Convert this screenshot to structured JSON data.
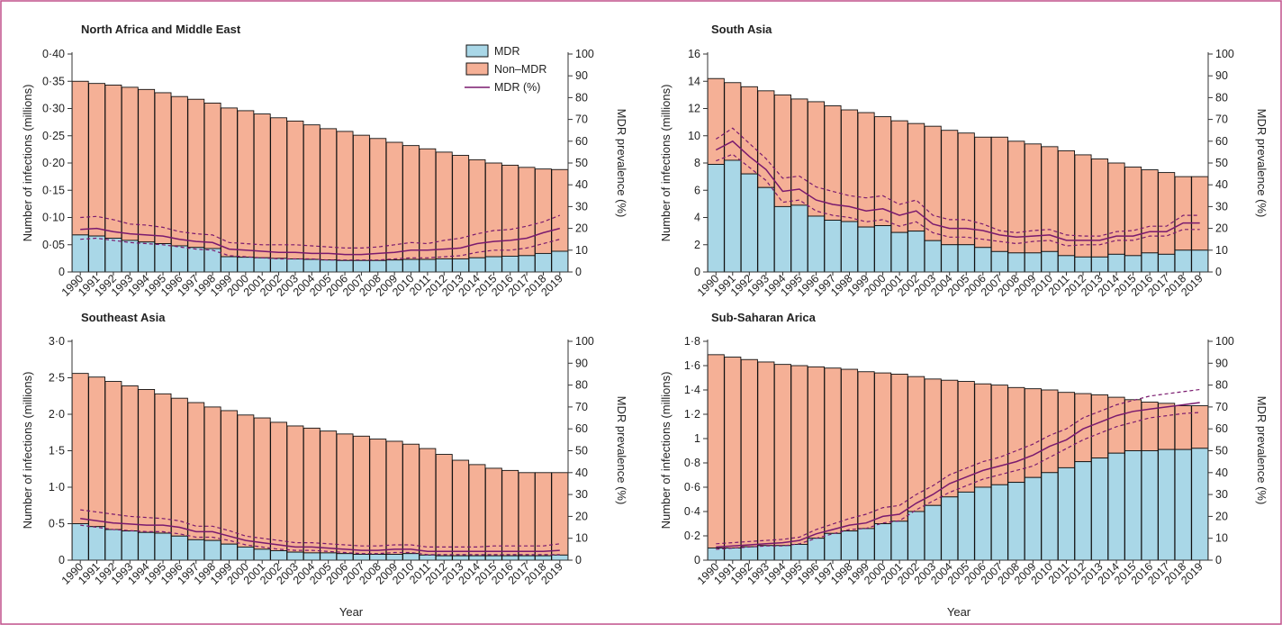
{
  "colors": {
    "border": "#c0508c",
    "mdr_fill": "#a9d7e7",
    "nonmdr_fill": "#f5b096",
    "bar_stroke": "#111111",
    "line": "#7a1a6e"
  },
  "legend": {
    "mdr": "MDR",
    "nonmdr": "Non–MDR",
    "pct": "MDR (%)"
  },
  "xlabel": "Year",
  "ylabel_left": "Number of infections (millions)",
  "ylabel_right": "MDR prevalence (%)",
  "chart_data": [
    {
      "type": "bar",
      "title": "North Africa and Middle East",
      "x": [
        "1990",
        "1991",
        "1992",
        "1993",
        "1994",
        "1995",
        "1996",
        "1997",
        "1998",
        "1999",
        "2000",
        "2001",
        "2002",
        "2003",
        "2004",
        "2005",
        "2006",
        "2007",
        "2008",
        "2009",
        "2010",
        "2011",
        "2012",
        "2013",
        "2014",
        "2015",
        "2016",
        "2017",
        "2018",
        "2019"
      ],
      "ylim": [
        0,
        0.4
      ],
      "yticks": [
        0,
        0.05,
        0.1,
        0.15,
        0.2,
        0.25,
        0.3,
        0.35,
        0.4
      ],
      "ytick_labels": [
        "0",
        "0·05",
        "0·10",
        "0·15",
        "0·20",
        "0·25",
        "0·30",
        "0·35",
        "0·40"
      ],
      "y2lim": [
        0,
        100
      ],
      "y2ticks": [
        0,
        10,
        20,
        30,
        40,
        50,
        60,
        70,
        80,
        90,
        100
      ],
      "legend_position": "top-right",
      "series": [
        {
          "name": "MDR",
          "values": [
            0.068,
            0.066,
            0.062,
            0.058,
            0.055,
            0.052,
            0.048,
            0.045,
            0.043,
            0.028,
            0.027,
            0.026,
            0.025,
            0.024,
            0.023,
            0.022,
            0.021,
            0.021,
            0.021,
            0.022,
            0.023,
            0.023,
            0.024,
            0.024,
            0.026,
            0.028,
            0.029,
            0.03,
            0.034,
            0.038
          ]
        },
        {
          "name": "Non-MDR",
          "values": [
            0.282,
            0.28,
            0.281,
            0.281,
            0.28,
            0.277,
            0.274,
            0.272,
            0.267,
            0.273,
            0.269,
            0.264,
            0.258,
            0.253,
            0.247,
            0.241,
            0.237,
            0.23,
            0.224,
            0.216,
            0.209,
            0.203,
            0.196,
            0.19,
            0.18,
            0.172,
            0.167,
            0.162,
            0.155,
            0.15
          ]
        },
        {
          "name": "MDR (%)",
          "values": [
            19.5,
            20,
            18.5,
            17.5,
            17,
            16.5,
            15,
            14,
            13.5,
            10.5,
            10,
            9.5,
            9,
            9,
            8.5,
            8.5,
            8,
            8,
            8.5,
            9,
            10,
            10,
            10.5,
            11,
            13,
            14,
            14.5,
            15.5,
            18,
            20
          ]
        },
        {
          "name": "MDR (%) upper",
          "values": [
            25,
            25.5,
            24,
            22,
            21.5,
            20.5,
            18.5,
            17.5,
            17,
            13.5,
            13,
            12.5,
            12.5,
            12.5,
            12,
            11.5,
            11,
            11,
            11.5,
            12.5,
            13.5,
            13,
            14.5,
            15.5,
            17.5,
            19,
            19.5,
            21,
            23,
            26
          ]
        },
        {
          "name": "MDR (%) lower",
          "values": [
            15,
            15.5,
            14.5,
            13.5,
            13,
            12.5,
            11.5,
            10.5,
            10,
            7.5,
            7,
            6.5,
            6,
            6,
            6,
            5.5,
            5.5,
            5.5,
            5.5,
            6,
            6.5,
            6.5,
            7,
            7.5,
            9,
            10,
            10,
            11,
            13,
            15
          ]
        }
      ]
    },
    {
      "type": "bar",
      "title": "South Asia",
      "x": [
        "1990",
        "1991",
        "1992",
        "1993",
        "1994",
        "1995",
        "1996",
        "1997",
        "1998",
        "1999",
        "2000",
        "2001",
        "2002",
        "2003",
        "2004",
        "2005",
        "2006",
        "2007",
        "2008",
        "2009",
        "2010",
        "2011",
        "2012",
        "2013",
        "2014",
        "2015",
        "2016",
        "2017",
        "2018",
        "2019"
      ],
      "ylim": [
        0,
        16
      ],
      "yticks": [
        0,
        2,
        4,
        6,
        8,
        10,
        12,
        14,
        16
      ],
      "ytick_labels": [
        "0",
        "2",
        "4",
        "6",
        "8",
        "10",
        "12",
        "14",
        "16"
      ],
      "y2lim": [
        0,
        100
      ],
      "y2ticks": [
        0,
        10,
        20,
        30,
        40,
        50,
        60,
        70,
        80,
        90,
        100
      ],
      "series": [
        {
          "name": "MDR",
          "values": [
            7.9,
            8.2,
            7.2,
            6.2,
            4.8,
            4.9,
            4.1,
            3.8,
            3.7,
            3.3,
            3.4,
            2.9,
            3.0,
            2.3,
            2.0,
            2.0,
            1.8,
            1.5,
            1.4,
            1.4,
            1.5,
            1.2,
            1.1,
            1.1,
            1.3,
            1.2,
            1.4,
            1.3,
            1.6,
            1.6
          ]
        },
        {
          "name": "Non-MDR",
          "values": [
            6.3,
            5.7,
            6.4,
            7.1,
            8.2,
            7.8,
            8.4,
            8.4,
            8.2,
            8.4,
            8.0,
            8.2,
            7.9,
            8.4,
            8.4,
            8.2,
            8.1,
            8.4,
            8.2,
            8.0,
            7.7,
            7.7,
            7.5,
            7.2,
            6.7,
            6.5,
            6.1,
            6.0,
            5.4,
            5.4
          ]
        },
        {
          "name": "MDR (%)",
          "values": [
            56,
            60,
            53,
            47,
            37,
            38,
            33,
            31,
            30,
            28,
            29,
            26,
            28,
            22,
            20,
            20,
            19,
            17,
            16,
            16.5,
            17,
            14.5,
            14.5,
            14.5,
            16.5,
            16.5,
            18.5,
            18.5,
            22.5,
            22.5
          ]
        },
        {
          "name": "MDR (%) upper",
          "values": [
            61,
            66,
            59,
            52,
            43,
            44,
            39,
            37,
            35,
            34,
            35,
            31,
            33,
            26,
            24,
            24,
            22,
            19,
            18,
            19,
            19.5,
            17,
            16.5,
            16.5,
            18.5,
            19,
            21,
            21,
            26,
            26
          ]
        },
        {
          "name": "MDR (%) lower",
          "values": [
            51,
            54,
            48,
            42,
            32,
            33,
            28,
            26,
            25,
            23,
            24,
            21,
            23,
            18,
            16,
            16,
            15,
            14,
            13,
            14,
            14.5,
            12,
            12.5,
            12.5,
            14.5,
            14.5,
            16.5,
            16.5,
            19.5,
            19.5
          ]
        }
      ]
    },
    {
      "type": "bar",
      "title": "Southeast Asia",
      "x": [
        "1990",
        "1991",
        "1992",
        "1993",
        "1994",
        "1995",
        "1996",
        "1997",
        "1998",
        "1999",
        "2000",
        "2001",
        "2002",
        "2003",
        "2004",
        "2005",
        "2006",
        "2007",
        "2008",
        "2009",
        "2010",
        "2011",
        "2012",
        "2013",
        "2014",
        "2015",
        "2016",
        "2017",
        "2018",
        "2019"
      ],
      "ylim": [
        0,
        3.0
      ],
      "yticks": [
        0,
        0.5,
        1.0,
        1.5,
        2.0,
        2.5,
        3.0
      ],
      "ytick_labels": [
        "0",
        "0·5",
        "1·0",
        "1·5",
        "2·0",
        "2·5",
        "3·0"
      ],
      "y2lim": [
        0,
        100
      ],
      "y2ticks": [
        0,
        10,
        20,
        30,
        40,
        50,
        60,
        70,
        80,
        90,
        100
      ],
      "series": [
        {
          "name": "MDR",
          "values": [
            0.5,
            0.46,
            0.42,
            0.4,
            0.38,
            0.37,
            0.33,
            0.28,
            0.27,
            0.22,
            0.18,
            0.15,
            0.13,
            0.11,
            0.1,
            0.1,
            0.09,
            0.08,
            0.08,
            0.08,
            0.09,
            0.07,
            0.06,
            0.06,
            0.06,
            0.06,
            0.06,
            0.06,
            0.06,
            0.07
          ]
        },
        {
          "name": "Non-MDR",
          "values": [
            2.06,
            2.05,
            2.03,
            1.99,
            1.96,
            1.91,
            1.89,
            1.88,
            1.83,
            1.83,
            1.81,
            1.8,
            1.76,
            1.73,
            1.71,
            1.67,
            1.64,
            1.62,
            1.58,
            1.55,
            1.5,
            1.46,
            1.39,
            1.31,
            1.25,
            1.2,
            1.17,
            1.14,
            1.14,
            1.13
          ]
        },
        {
          "name": "MDR (%)",
          "values": [
            19,
            18,
            17,
            16.5,
            16,
            16,
            15,
            13,
            13,
            11,
            9,
            8,
            7,
            6,
            6,
            5.5,
            5,
            4.5,
            4.5,
            5,
            5,
            4,
            4,
            4,
            4,
            4,
            4,
            4,
            4,
            4.5
          ]
        },
        {
          "name": "MDR (%) upper",
          "values": [
            23,
            22,
            21,
            20,
            19.5,
            19,
            18,
            15.5,
            15.5,
            13.5,
            11,
            10,
            9,
            8,
            8,
            7.5,
            7,
            6.5,
            6.5,
            7,
            7,
            6,
            6,
            6,
            6,
            6.5,
            6.5,
            6.5,
            6.5,
            7.5
          ]
        },
        {
          "name": "MDR (%) lower",
          "values": [
            16,
            15,
            14,
            13.5,
            13,
            13,
            12,
            10.5,
            10.5,
            9,
            7,
            6,
            5,
            4.5,
            4.5,
            4,
            3.5,
            3,
            3,
            3.5,
            3.5,
            2.5,
            2.5,
            2.5,
            2.5,
            2.5,
            2.5,
            2.5,
            2.5,
            2.5
          ]
        }
      ]
    },
    {
      "type": "bar",
      "title": "Sub-Saharan Arica",
      "x": [
        "1990",
        "1991",
        "1992",
        "1993",
        "1994",
        "1995",
        "1996",
        "1997",
        "1998",
        "1999",
        "2000",
        "2001",
        "2002",
        "2003",
        "2004",
        "2005",
        "2006",
        "2007",
        "2008",
        "2009",
        "2010",
        "2011",
        "2012",
        "2013",
        "2014",
        "2015",
        "2016",
        "2017",
        "2018",
        "2019"
      ],
      "ylim": [
        0,
        1.8
      ],
      "yticks": [
        0,
        0.2,
        0.4,
        0.6,
        0.8,
        1.0,
        1.2,
        1.4,
        1.6,
        1.8
      ],
      "ytick_labels": [
        "0",
        "0·2",
        "0·4",
        "0·6",
        "0·8",
        "1",
        "1·2",
        "1·4",
        "1·6",
        "1·8"
      ],
      "y2lim": [
        0,
        100
      ],
      "y2ticks": [
        0,
        10,
        20,
        30,
        40,
        50,
        60,
        70,
        80,
        90,
        100
      ],
      "series": [
        {
          "name": "MDR",
          "values": [
            0.1,
            0.1,
            0.11,
            0.12,
            0.12,
            0.13,
            0.18,
            0.22,
            0.24,
            0.26,
            0.3,
            0.32,
            0.4,
            0.45,
            0.52,
            0.56,
            0.6,
            0.62,
            0.64,
            0.68,
            0.72,
            0.76,
            0.81,
            0.84,
            0.88,
            0.9,
            0.9,
            0.91,
            0.91,
            0.92
          ]
        },
        {
          "name": "Non-MDR",
          "values": [
            1.59,
            1.57,
            1.54,
            1.51,
            1.49,
            1.47,
            1.41,
            1.36,
            1.33,
            1.29,
            1.24,
            1.21,
            1.11,
            1.04,
            0.96,
            0.91,
            0.85,
            0.82,
            0.78,
            0.73,
            0.68,
            0.62,
            0.56,
            0.52,
            0.46,
            0.42,
            0.4,
            0.38,
            0.36,
            0.35
          ]
        },
        {
          "name": "MDR (%)",
          "values": [
            6,
            6.5,
            7,
            7.5,
            8,
            9,
            12,
            14,
            16,
            17,
            20,
            21,
            26,
            30,
            35,
            38,
            41,
            43,
            45,
            48,
            52,
            55,
            60,
            63,
            66,
            68,
            69,
            70,
            71,
            72
          ]
        },
        {
          "name": "MDR (%) upper",
          "values": [
            7.5,
            8,
            8.5,
            9,
            9.5,
            10.5,
            14,
            16.5,
            19,
            21,
            24,
            25,
            30,
            34,
            39,
            42,
            45,
            47,
            50,
            53,
            57,
            60,
            65,
            68,
            71,
            73,
            75,
            76,
            77,
            78
          ]
        },
        {
          "name": "MDR (%) lower",
          "values": [
            5,
            5.5,
            6,
            6.5,
            6.5,
            7.5,
            10,
            12,
            14,
            14.5,
            17,
            18,
            23,
            27,
            31,
            34,
            37,
            39,
            41,
            43,
            47,
            51,
            55,
            58,
            61,
            63,
            65,
            66,
            67,
            67.5
          ]
        }
      ]
    }
  ]
}
